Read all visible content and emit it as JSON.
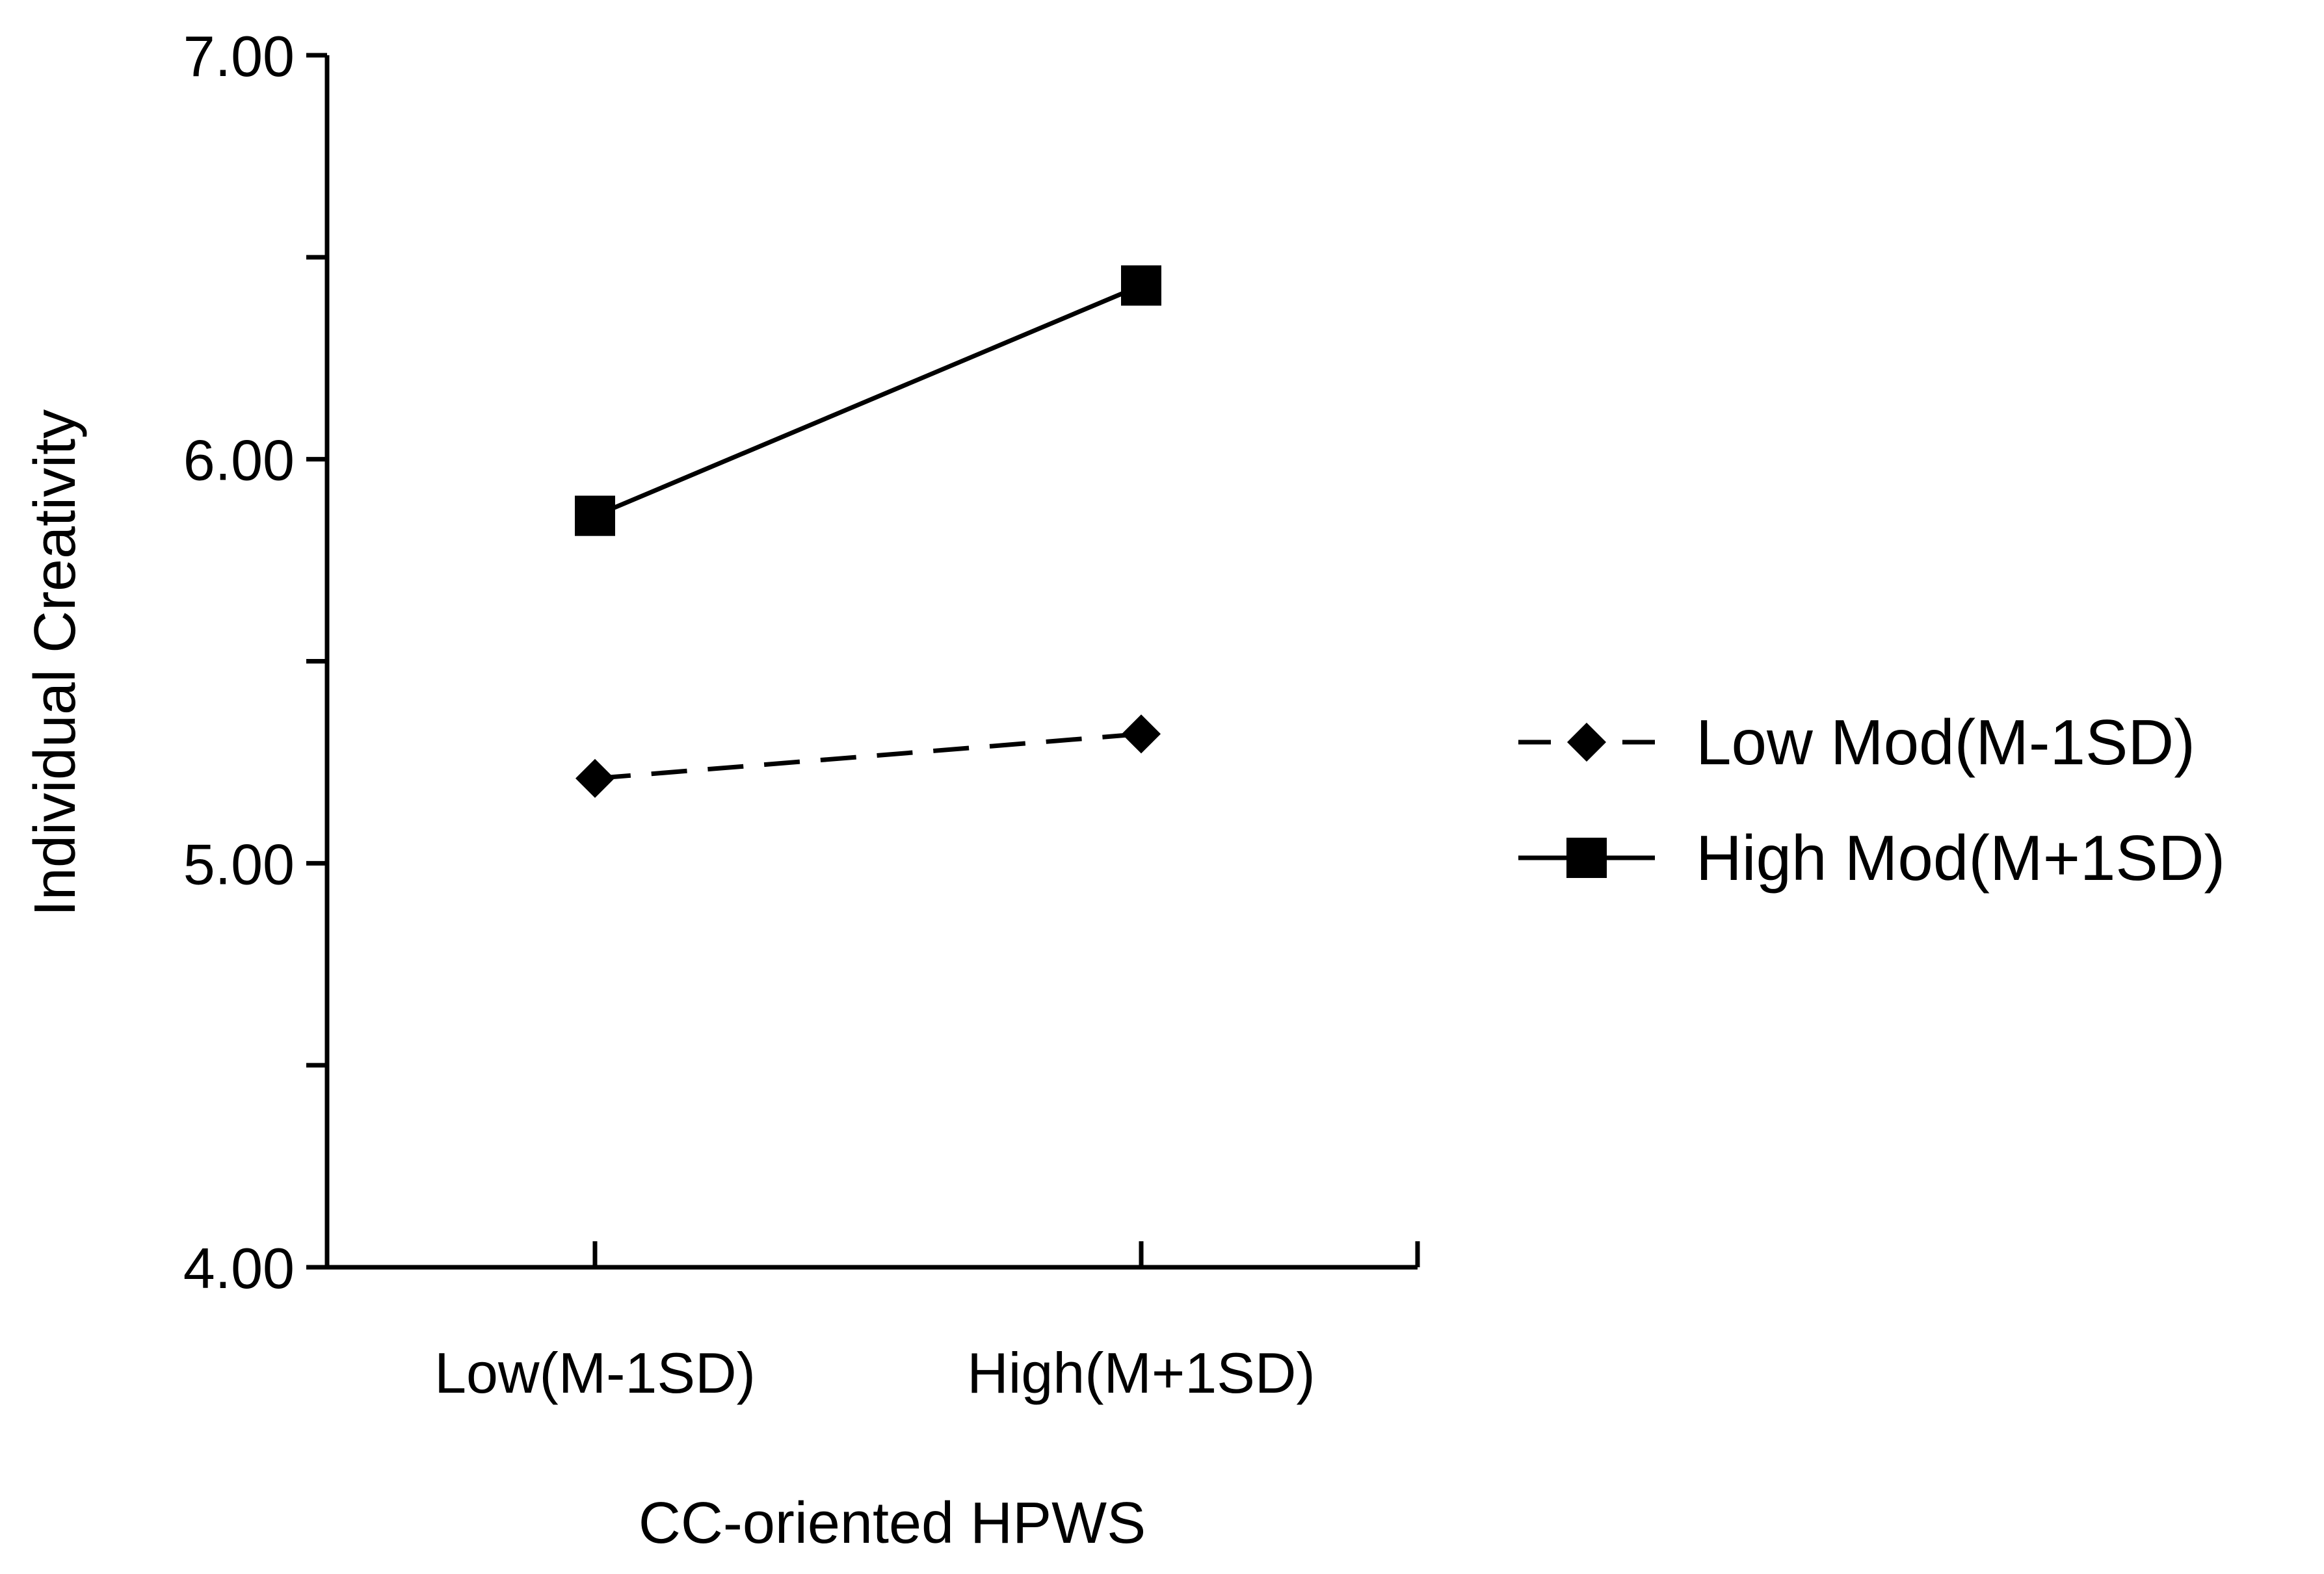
{
  "chart_data": {
    "type": "line",
    "title": "",
    "xlabel": "CC-oriented HPWS",
    "ylabel": "Individual Creativity",
    "categories": [
      "Low(M-1SD)",
      "High(M+1SD)"
    ],
    "ylim": [
      4.0,
      7.0
    ],
    "yticks": [
      4.0,
      4.5,
      5.0,
      5.5,
      6.0,
      6.5,
      7.0
    ],
    "ytick_labels": [
      "4.00",
      "",
      "5.00",
      "",
      "6.00",
      "",
      "7.00"
    ],
    "grid": false,
    "legend": "right",
    "series": [
      {
        "name": "Low Mod(M-1SD)",
        "values": [
          5.21,
          5.32
        ],
        "line": "dashed",
        "marker": "diamond",
        "color": "#000000"
      },
      {
        "name": "High Mod(M+1SD)",
        "values": [
          5.86,
          6.43
        ],
        "line": "solid",
        "marker": "square",
        "color": "#000000"
      }
    ]
  }
}
